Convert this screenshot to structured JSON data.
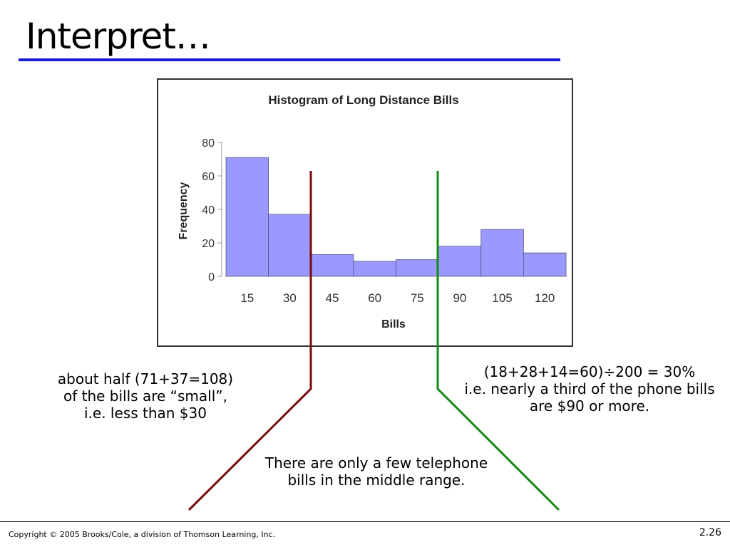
{
  "slide": {
    "title": "Interpret…",
    "copyright": "Copyright © 2005 Brooks/Cole, a division of Thomson Learning, Inc.",
    "number": "2.26"
  },
  "chart_data": {
    "type": "bar",
    "title": "Histogram of Long Distance Bills",
    "xlabel": "Bills",
    "ylabel": "Frequency",
    "categories": [
      "15",
      "30",
      "45",
      "60",
      "75",
      "90",
      "105",
      "120"
    ],
    "values": [
      71,
      37,
      13,
      9,
      10,
      18,
      28,
      14
    ],
    "ylim": [
      0,
      80
    ],
    "yticks": [
      0,
      20,
      40,
      60,
      80
    ],
    "bar_color": "#9999ff",
    "grid": false
  },
  "annotations": {
    "left": {
      "lines": [
        "about half (71+37=108)",
        "of the bills are “small”,",
        "i.e. less than $30"
      ],
      "color": "#7a0a0a"
    },
    "right": {
      "lines": [
        "(18+28+14=60)÷200 = 30%",
        "i.e. nearly a third of the phone bills",
        "are $90 or more."
      ],
      "color": "#138a13"
    },
    "middle": {
      "lines": [
        "There are only a few telephone",
        "bills in the middle range."
      ]
    }
  }
}
